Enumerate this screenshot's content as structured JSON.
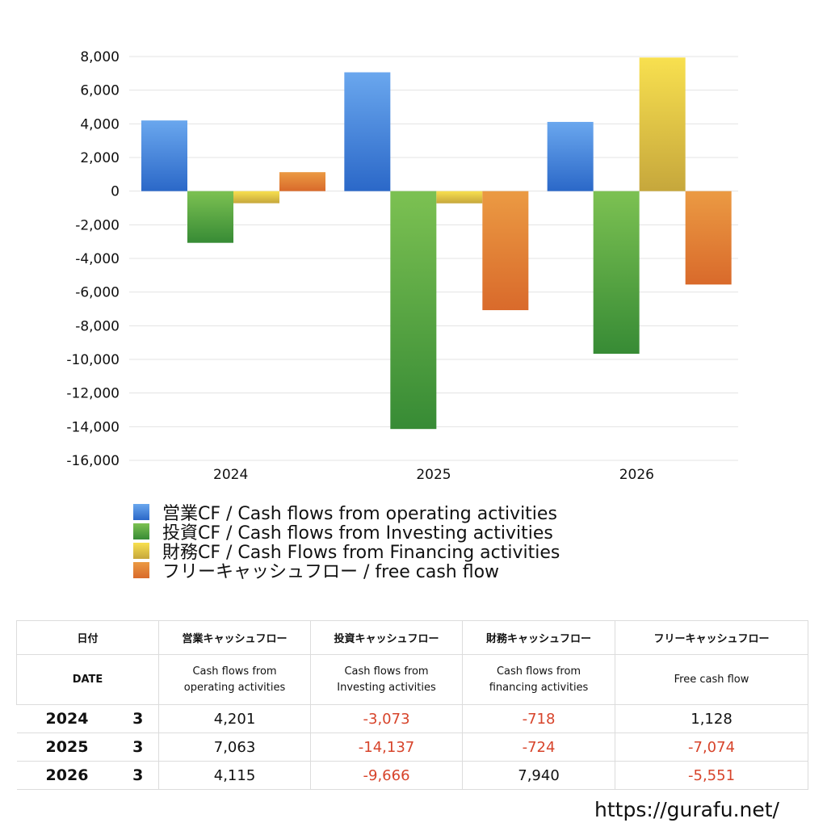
{
  "chart_data": {
    "type": "bar",
    "categories": [
      "2024",
      "2025",
      "2026"
    ],
    "series": [
      {
        "name": "営業CF / Cash flows from operating activities",
        "values": [
          4201,
          7063,
          4115
        ],
        "color_top": "#6aa7ee",
        "color_bottom": "#2b68c8"
      },
      {
        "name": "投資CF / Cash flows from Investing activities",
        "values": [
          -3073,
          -14137,
          -9666
        ],
        "color_top": "#7cc152",
        "color_bottom": "#378b35"
      },
      {
        "name": "財務CF / Cash Flows from Financing activities",
        "values": [
          -718,
          -724,
          7940
        ],
        "color_top": "#f8e04f",
        "color_bottom": "#c6a73c"
      },
      {
        "name": "フリーキャッシュフロー / free cash flow",
        "values": [
          1128,
          -7074,
          -5551
        ],
        "color_top": "#eb9a43",
        "color_bottom": "#d96a2b"
      }
    ],
    "ylim": [
      -16000,
      8000
    ],
    "yticks": [
      8000,
      6000,
      4000,
      2000,
      0,
      -2000,
      -4000,
      -6000,
      -8000,
      -10000,
      -12000,
      -14000,
      -16000
    ],
    "ytick_labels": [
      "8,000",
      "6,000",
      "4,000",
      "2,000",
      "0",
      "-2,000",
      "-4,000",
      "-6,000",
      "-8,000",
      "-10,000",
      "-12,000",
      "-14,000",
      "-16,000"
    ],
    "grid": true,
    "legend_position": "bottom"
  },
  "table": {
    "header_jp": [
      "日付",
      "営業キャッシュフロー",
      "投資キャッシュフロー",
      "財務キャッシュフロー",
      "フリーキャッシュフロー"
    ],
    "header_en": [
      "DATE",
      "Cash flows from\noperating activities",
      "Cash flows from\nInvesting activities",
      "Cash flows from\nfinancing activities",
      "Free cash flow"
    ],
    "rows": [
      {
        "year": "2024",
        "month": "3",
        "values": [
          "4,201",
          "-3,073",
          "-718",
          "1,128"
        ]
      },
      {
        "year": "2025",
        "month": "3",
        "values": [
          "7,063",
          "-14,137",
          "-724",
          "-7,074"
        ]
      },
      {
        "year": "2026",
        "month": "3",
        "values": [
          "4,115",
          "-9,666",
          "7,940",
          "-5,551"
        ]
      }
    ]
  },
  "site_url": "https://gurafu.net/"
}
